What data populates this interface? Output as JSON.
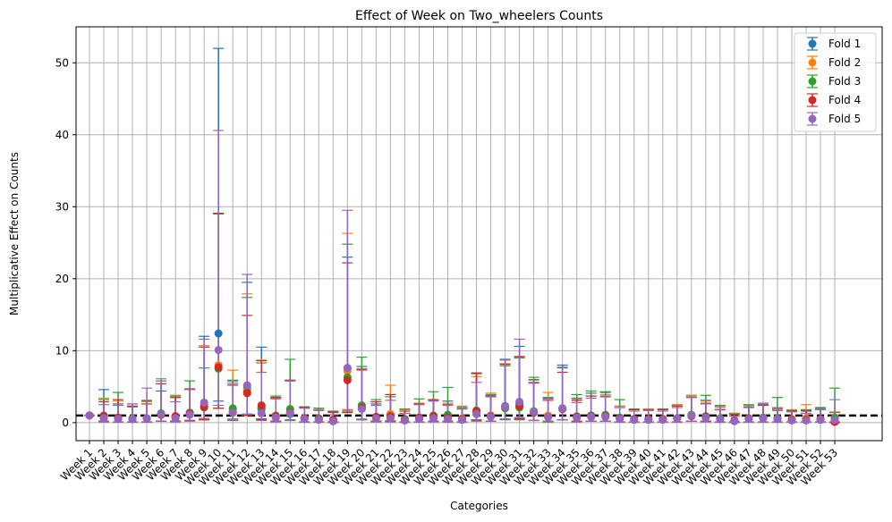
{
  "chart_data": {
    "type": "errorbar",
    "title": "Effect of Week on Two_wheelers Counts",
    "xlabel": "Categories",
    "ylabel": "Multiplicative Effect on Counts",
    "ylim": [
      -2.5,
      55
    ],
    "yticks": [
      0,
      10,
      20,
      30,
      40,
      50
    ],
    "grid": true,
    "legend_position": "top-right",
    "reference_line": {
      "y": 1,
      "style": "dashed",
      "color": "#000000"
    },
    "categories": [
      "Week 1",
      "Week 2",
      "Week 3",
      "Week 4",
      "Week 5",
      "Week 6",
      "Week 7",
      "Week 8",
      "Week 9",
      "Week 10",
      "Week 11",
      "Week 12",
      "Week 13",
      "Week 14",
      "Week 15",
      "Week 16",
      "Week 17",
      "Week 18",
      "Week 19",
      "Week 20",
      "Week 21",
      "Week 22",
      "Week 23",
      "Week 24",
      "Week 25",
      "Week 26",
      "Week 27",
      "Week 28",
      "Week 29",
      "Week 30",
      "Week 31",
      "Week 32",
      "Week 33",
      "Week 34",
      "Week 35",
      "Week 36",
      "Week 37",
      "Week 38",
      "Week 39",
      "Week 40",
      "Week 41",
      "Week 42",
      "Week 43",
      "Week 44",
      "Week 45",
      "Week 46",
      "Week 47",
      "Week 48",
      "Week 49",
      "Week 50",
      "Week 51",
      "Week 52",
      "Week 53"
    ],
    "series": [
      {
        "name": "Fold 1",
        "color": "#1f77b4",
        "values": [
          1.0,
          1.0,
          0.6,
          0.5,
          0.6,
          1.2,
          0.8,
          1.3,
          2.5,
          12.4,
          1.5,
          4.8,
          1.9,
          0.9,
          1.2,
          0.6,
          0.6,
          0.3,
          7.6,
          2.1,
          0.8,
          0.9,
          0.4,
          0.7,
          0.9,
          0.8,
          0.5,
          1.6,
          0.9,
          2.3,
          2.6,
          1.5,
          0.9,
          2.0,
          0.8,
          1.0,
          1.0,
          0.6,
          0.5,
          0.5,
          0.5,
          0.6,
          1.0,
          0.9,
          0.6,
          0.3,
          0.6,
          0.7,
          0.5,
          0.4,
          0.4,
          0.5,
          0.3
        ],
        "lower": [
          1.0,
          0.2,
          0.1,
          0.1,
          0.1,
          0.2,
          0.2,
          0.3,
          0.4,
          3.0,
          0.3,
          1.0,
          0.4,
          0.2,
          0.3,
          0.1,
          0.1,
          0.1,
          1.8,
          0.4,
          0.2,
          0.2,
          0.1,
          0.1,
          0.2,
          0.2,
          0.1,
          0.3,
          0.2,
          0.5,
          0.6,
          0.3,
          0.2,
          0.4,
          0.2,
          0.2,
          0.2,
          0.1,
          0.1,
          0.1,
          0.1,
          0.1,
          0.2,
          0.2,
          0.1,
          0.1,
          0.1,
          0.1,
          0.1,
          0.1,
          0.1,
          0.1,
          0.1
        ],
        "upper": [
          1.0,
          4.6,
          2.6,
          2.2,
          3.0,
          4.4,
          3.5,
          4.7,
          12.0,
          52.0,
          5.9,
          19.5,
          10.5,
          3.5,
          5.8,
          2.2,
          2.0,
          1.4,
          23.0,
          7.8,
          2.6,
          3.9,
          1.9,
          2.7,
          3.1,
          3.0,
          2.2,
          6.9,
          3.8,
          8.8,
          10.6,
          6.0,
          3.5,
          8.0,
          3.4,
          4.1,
          4.2,
          2.3,
          1.9,
          1.9,
          1.9,
          2.5,
          3.8,
          3.1,
          2.3,
          1.3,
          2.2,
          2.5,
          1.9,
          1.7,
          1.8,
          2.0,
          1.4
        ]
      },
      {
        "name": "Fold 2",
        "color": "#ff7f0e",
        "values": [
          1.0,
          0.8,
          0.7,
          0.5,
          0.6,
          1.1,
          0.9,
          1.2,
          2.5,
          8.0,
          1.8,
          4.5,
          2.3,
          0.9,
          1.3,
          0.6,
          0.5,
          0.4,
          7.2,
          2.0,
          0.7,
          1.2,
          0.4,
          0.7,
          0.8,
          0.7,
          0.6,
          1.5,
          1.0,
          2.1,
          2.2,
          1.4,
          1.0,
          1.9,
          0.7,
          0.9,
          0.9,
          0.6,
          0.4,
          0.5,
          0.5,
          0.6,
          1.0,
          0.8,
          0.5,
          0.3,
          0.6,
          0.7,
          0.5,
          0.5,
          0.6,
          0.4,
          0.3
        ],
        "lower": [
          1.0,
          0.2,
          0.1,
          0.1,
          0.1,
          0.2,
          0.2,
          0.3,
          0.5,
          2.0,
          0.4,
          1.0,
          0.5,
          0.2,
          0.3,
          0.1,
          0.1,
          0.1,
          1.8,
          0.4,
          0.1,
          0.3,
          0.1,
          0.1,
          0.2,
          0.1,
          0.1,
          0.3,
          0.2,
          0.5,
          0.5,
          0.3,
          0.2,
          0.4,
          0.1,
          0.2,
          0.2,
          0.1,
          0.1,
          0.1,
          0.1,
          0.1,
          0.2,
          0.2,
          0.1,
          0.1,
          0.1,
          0.1,
          0.1,
          0.1,
          0.1,
          0.1,
          0.1
        ],
        "upper": [
          1.0,
          3.4,
          3.0,
          2.3,
          2.9,
          5.4,
          3.8,
          4.6,
          10.7,
          29.0,
          7.3,
          17.9,
          8.7,
          3.4,
          5.9,
          2.1,
          1.8,
          1.5,
          26.3,
          7.5,
          2.9,
          5.2,
          1.8,
          2.7,
          3.2,
          2.7,
          2.3,
          6.4,
          4.1,
          8.2,
          9.1,
          5.9,
          4.2,
          7.7,
          3.2,
          3.7,
          3.9,
          2.3,
          1.8,
          1.9,
          1.9,
          2.5,
          3.8,
          3.0,
          2.3,
          1.3,
          2.4,
          2.7,
          2.0,
          1.8,
          2.5,
          1.8,
          1.5
        ]
      },
      {
        "name": "Fold 3",
        "color": "#2ca02c",
        "values": [
          1.0,
          0.7,
          0.7,
          0.6,
          0.6,
          1.3,
          0.9,
          1.4,
          2.1,
          7.5,
          2.0,
          4.2,
          2.1,
          1.0,
          1.9,
          0.6,
          0.6,
          0.4,
          6.3,
          2.4,
          0.8,
          0.9,
          0.5,
          0.6,
          1.0,
          1.1,
          0.4,
          1.7,
          0.9,
          2.0,
          2.1,
          1.6,
          0.8,
          2.0,
          0.9,
          1.0,
          1.1,
          0.7,
          0.5,
          0.4,
          0.5,
          0.6,
          1.1,
          0.9,
          0.6,
          0.3,
          0.6,
          0.7,
          0.6,
          0.4,
          0.4,
          0.5,
          0.7
        ],
        "lower": [
          1.0,
          0.1,
          0.1,
          0.1,
          0.1,
          0.2,
          0.2,
          0.3,
          0.4,
          2.0,
          0.5,
          1.0,
          0.5,
          0.2,
          0.4,
          0.1,
          0.1,
          0.1,
          1.5,
          0.5,
          0.2,
          0.2,
          0.1,
          0.1,
          0.2,
          0.2,
          0.1,
          0.4,
          0.2,
          0.4,
          0.4,
          0.3,
          0.1,
          0.4,
          0.2,
          0.2,
          0.2,
          0.1,
          0.1,
          0.1,
          0.1,
          0.1,
          0.2,
          0.2,
          0.1,
          0.1,
          0.1,
          0.1,
          0.1,
          0.1,
          0.1,
          0.1,
          0.1
        ],
        "upper": [
          1.0,
          3.2,
          4.2,
          2.6,
          3.1,
          5.8,
          3.7,
          5.8,
          7.6,
          29.0,
          5.7,
          17.4,
          8.3,
          3.7,
          8.8,
          2.2,
          2.0,
          1.6,
          24.8,
          9.1,
          3.2,
          3.6,
          1.9,
          3.3,
          4.3,
          4.9,
          2.0,
          6.8,
          3.9,
          7.9,
          9.0,
          6.3,
          3.4,
          7.6,
          3.9,
          4.4,
          4.3,
          3.2,
          1.9,
          1.7,
          1.9,
          2.3,
          3.6,
          3.8,
          2.4,
          1.2,
          2.5,
          2.7,
          3.5,
          1.7,
          1.7,
          2.1,
          4.8
        ]
      },
      {
        "name": "Fold 4",
        "color": "#d62728",
        "values": [
          1.0,
          0.9,
          0.7,
          0.5,
          0.6,
          1.1,
          0.9,
          1.3,
          2.2,
          7.7,
          1.4,
          4.1,
          2.4,
          0.9,
          1.4,
          0.6,
          0.5,
          0.4,
          5.9,
          2.1,
          0.8,
          0.9,
          0.4,
          0.7,
          0.9,
          0.7,
          0.5,
          1.6,
          0.9,
          2.2,
          2.3,
          1.4,
          0.8,
          1.9,
          0.8,
          0.9,
          0.9,
          0.6,
          0.5,
          0.5,
          0.5,
          0.6,
          0.9,
          0.8,
          0.5,
          0.3,
          0.6,
          0.6,
          0.5,
          0.4,
          0.4,
          0.5,
          0.1
        ],
        "lower": [
          1.0,
          0.2,
          0.1,
          0.1,
          0.1,
          0.2,
          0.2,
          0.3,
          0.4,
          2.0,
          0.3,
          1.0,
          0.5,
          0.2,
          0.3,
          0.1,
          0.1,
          0.1,
          1.4,
          0.4,
          0.2,
          0.2,
          0.1,
          0.1,
          0.2,
          0.1,
          0.1,
          0.3,
          0.2,
          0.5,
          0.5,
          0.3,
          0.2,
          0.4,
          0.2,
          0.2,
          0.2,
          0.1,
          0.1,
          0.1,
          0.1,
          0.1,
          0.2,
          0.2,
          0.1,
          0.1,
          0.1,
          0.1,
          0.1,
          0.1,
          0.1,
          0.1,
          0.0
        ],
        "upper": [
          1.0,
          2.9,
          3.2,
          2.3,
          2.6,
          5.4,
          3.5,
          4.7,
          10.5,
          29.1,
          5.2,
          14.9,
          8.6,
          3.5,
          5.9,
          2.1,
          1.7,
          1.5,
          22.2,
          7.4,
          2.9,
          3.9,
          1.6,
          2.6,
          3.2,
          2.5,
          1.9,
          6.9,
          3.6,
          8.1,
          9.2,
          5.5,
          3.1,
          7.0,
          3.1,
          3.7,
          3.6,
          2.1,
          1.8,
          1.8,
          1.8,
          2.3,
          3.5,
          2.7,
          1.8,
          1.1,
          2.1,
          2.4,
          1.7,
          1.6,
          1.6,
          1.8,
          0.9
        ]
      },
      {
        "name": "Fold 5",
        "color": "#9467bd",
        "values": [
          1.0,
          0.6,
          0.5,
          0.5,
          0.6,
          1.2,
          0.6,
          1.1,
          2.8,
          10.1,
          1.4,
          5.2,
          1.3,
          0.7,
          1.3,
          0.5,
          0.4,
          0.2,
          7.6,
          1.9,
          0.6,
          0.6,
          0.3,
          0.5,
          0.6,
          0.5,
          0.4,
          1.2,
          0.8,
          2.2,
          2.9,
          1.5,
          0.8,
          2.0,
          0.7,
          0.8,
          0.8,
          0.5,
          0.4,
          0.4,
          0.4,
          0.6,
          1.0,
          0.7,
          0.5,
          0.2,
          0.5,
          0.6,
          0.5,
          0.3,
          0.3,
          0.4,
          0.4
        ],
        "lower": [
          1.0,
          0.1,
          0.1,
          0.1,
          0.1,
          0.2,
          0.1,
          0.2,
          0.6,
          2.4,
          0.3,
          1.2,
          0.3,
          0.1,
          0.3,
          0.1,
          0.1,
          0.0,
          1.7,
          0.4,
          0.1,
          0.1,
          0.1,
          0.1,
          0.1,
          0.1,
          0.1,
          0.2,
          0.2,
          0.5,
          0.7,
          0.3,
          0.2,
          0.4,
          0.1,
          0.2,
          0.2,
          0.1,
          0.1,
          0.1,
          0.1,
          0.1,
          0.2,
          0.1,
          0.1,
          0.0,
          0.1,
          0.1,
          0.1,
          0.1,
          0.1,
          0.1,
          0.1
        ],
        "upper": [
          1.0,
          2.5,
          2.4,
          2.6,
          4.8,
          6.1,
          2.9,
          4.6,
          11.6,
          40.6,
          5.4,
          20.6,
          7.0,
          3.3,
          5.8,
          2.0,
          1.7,
          1.1,
          29.5,
          7.3,
          2.4,
          3.1,
          1.3,
          2.5,
          3.0,
          2.4,
          1.9,
          5.6,
          3.7,
          8.7,
          11.6,
          5.6,
          3.3,
          7.7,
          2.8,
          3.4,
          3.7,
          2.1,
          1.6,
          1.7,
          1.6,
          2.1,
          3.5,
          2.6,
          2.1,
          0.9,
          2.1,
          2.7,
          2.1,
          1.5,
          1.3,
          1.8,
          3.2
        ]
      }
    ]
  }
}
